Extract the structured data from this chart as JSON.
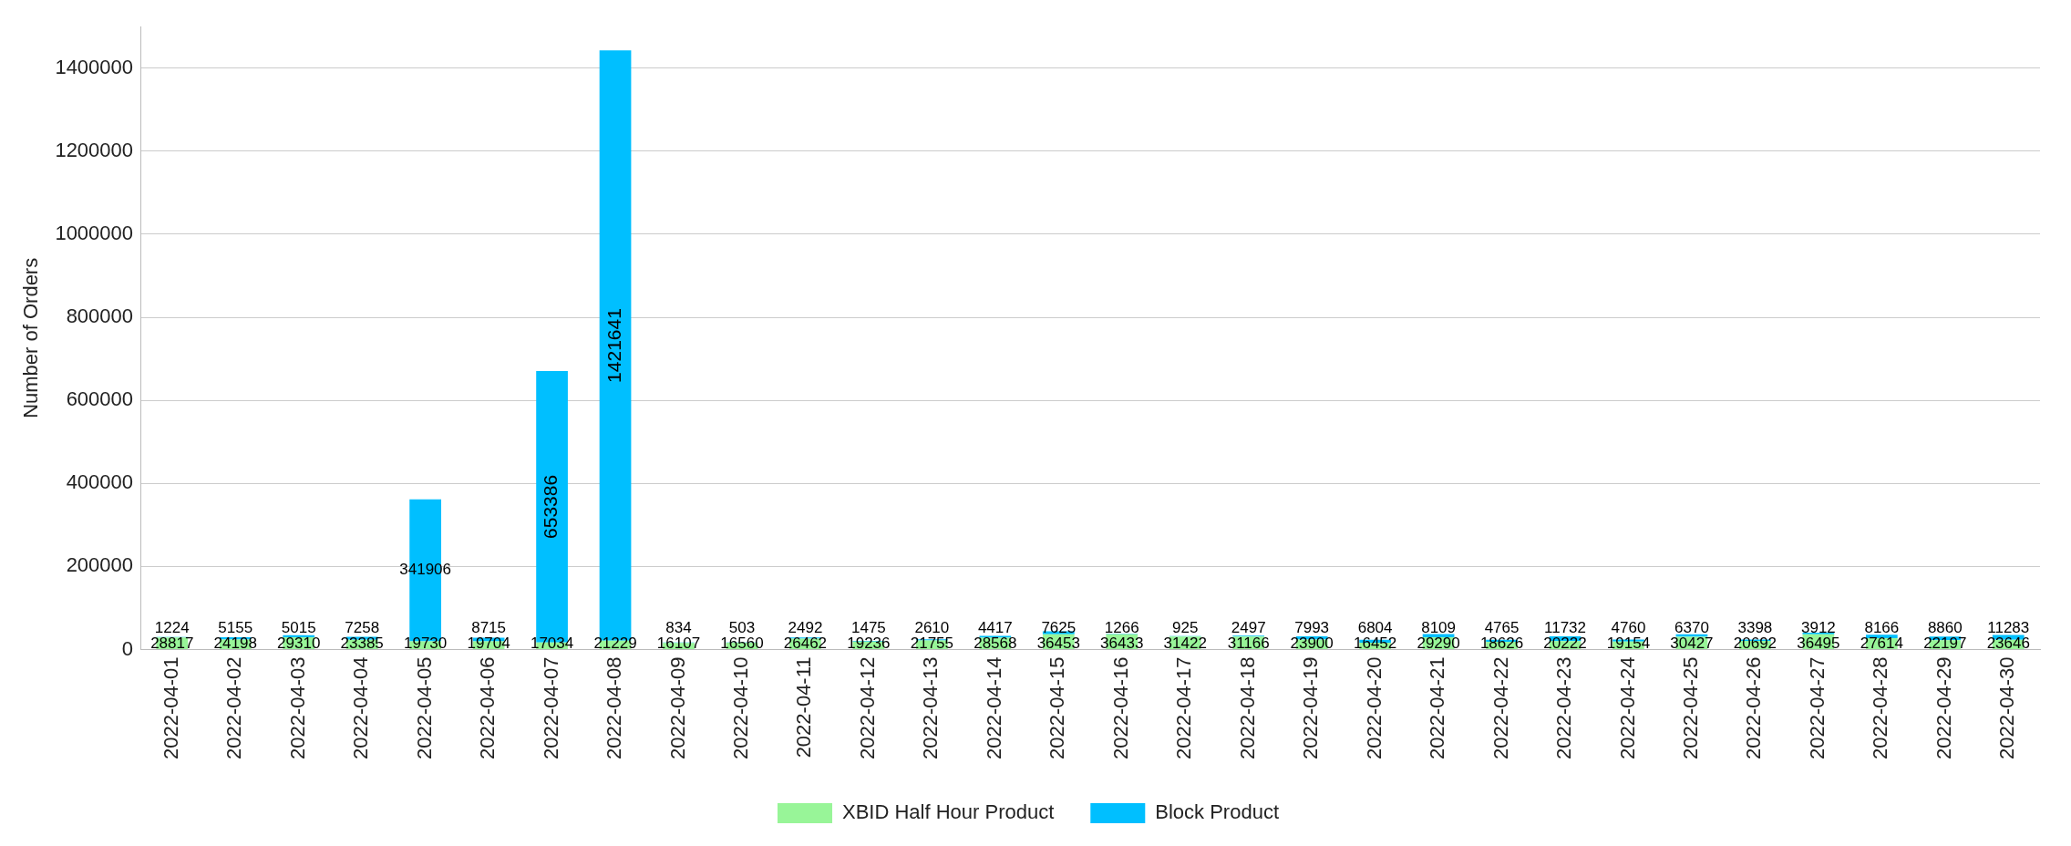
{
  "chart_data": {
    "type": "bar",
    "stacked": true,
    "ylabel": "Number of Orders",
    "categories": [
      "2022-04-01",
      "2022-04-02",
      "2022-04-03",
      "2022-04-04",
      "2022-04-05",
      "2022-04-06",
      "2022-04-07",
      "2022-04-08",
      "2022-04-09",
      "2022-04-10",
      "2022-04-11",
      "2022-04-12",
      "2022-04-13",
      "2022-04-14",
      "2022-04-15",
      "2022-04-16",
      "2022-04-17",
      "2022-04-18",
      "2022-04-19",
      "2022-04-20",
      "2022-04-21",
      "2022-04-22",
      "2022-04-23",
      "2022-04-24",
      "2022-04-25",
      "2022-04-26",
      "2022-04-27",
      "2022-04-28",
      "2022-04-29",
      "2022-04-30"
    ],
    "series": [
      {
        "name": "XBID Half Hour Product",
        "color": "#98f598",
        "values": [
          28817,
          24198,
          29310,
          23385,
          19730,
          19704,
          17034,
          21229,
          16107,
          16560,
          26462,
          19236,
          21755,
          28568,
          36453,
          36433,
          31422,
          31166,
          23900,
          16452,
          29290,
          18626,
          20222,
          19154,
          30427,
          20692,
          36495,
          27614,
          22197,
          23646
        ]
      },
      {
        "name": "Block Product",
        "color": "#00bfff",
        "values": [
          1224,
          5155,
          5015,
          7258,
          341906,
          8715,
          653386,
          1421641,
          834,
          503,
          2492,
          1475,
          2610,
          4417,
          7625,
          1266,
          925,
          2497,
          7993,
          6804,
          8109,
          4765,
          11732,
          4760,
          6370,
          3398,
          3912,
          8166,
          8860,
          11283
        ]
      }
    ],
    "ylim": [
      0,
      1500000
    ],
    "yticks": [
      0,
      200000,
      400000,
      600000,
      800000,
      1000000,
      1200000,
      1400000
    ],
    "grid": "y",
    "legend": "bottom",
    "data_labels": true
  }
}
